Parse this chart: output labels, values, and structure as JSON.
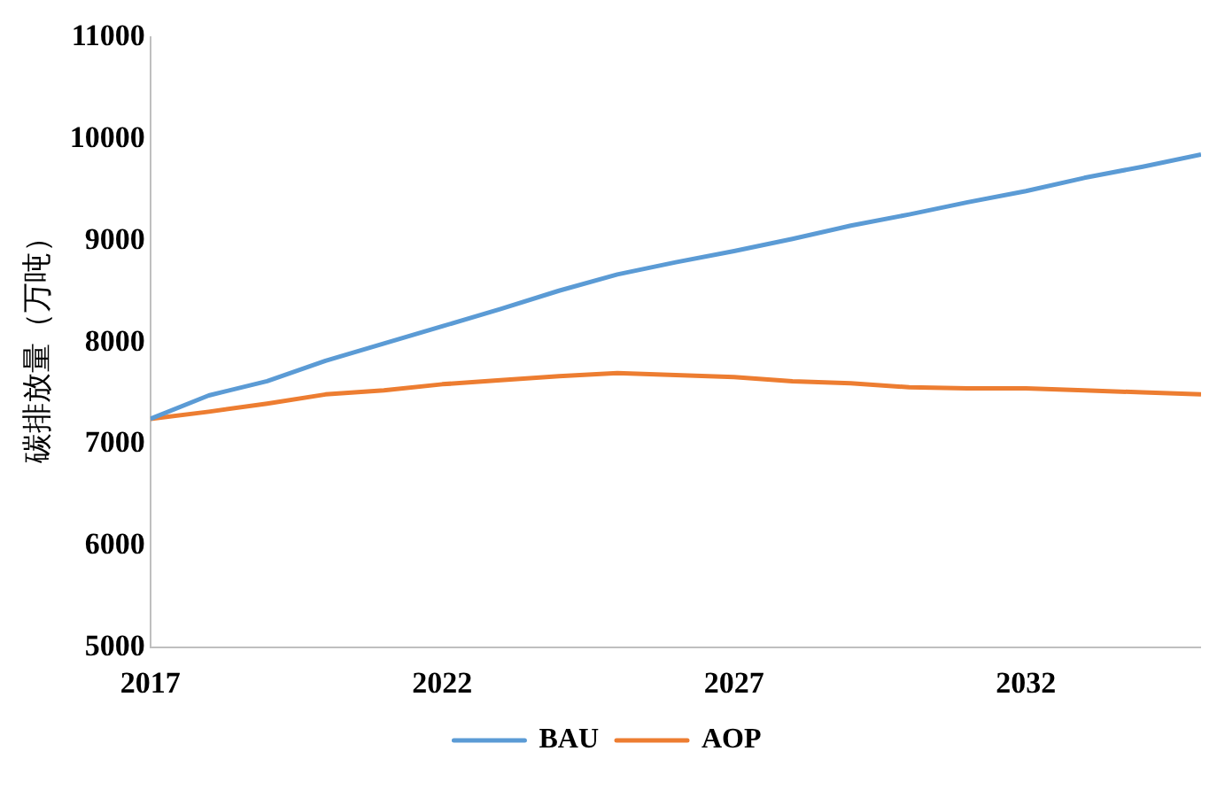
{
  "chart_data": {
    "type": "line",
    "ylabel": "碳排放量（万吨）",
    "x": [
      2017,
      2018,
      2019,
      2020,
      2021,
      2022,
      2023,
      2024,
      2025,
      2026,
      2027,
      2028,
      2029,
      2030,
      2031,
      2032,
      2033,
      2034,
      2035
    ],
    "series": [
      {
        "name": "BAU",
        "color": "#5b9bd5",
        "values": [
          7250,
          7480,
          7620,
          7820,
          7990,
          8160,
          8330,
          8510,
          8670,
          8790,
          8900,
          9020,
          9150,
          9260,
          9380,
          9490,
          9620,
          9730,
          9850
        ]
      },
      {
        "name": "AOP",
        "color": "#ed7d31",
        "values": [
          7250,
          7320,
          7400,
          7490,
          7530,
          7590,
          7630,
          7670,
          7700,
          7680,
          7660,
          7620,
          7600,
          7560,
          7550,
          7550,
          7530,
          7510,
          7490
        ]
      }
    ],
    "xlim": [
      2017,
      2035
    ],
    "xticks": [
      2017,
      2022,
      2027,
      2032
    ],
    "ylim": [
      5000,
      11000
    ],
    "yticks": [
      5000,
      6000,
      7000,
      8000,
      9000,
      10000,
      11000
    ],
    "grid": false,
    "legend": "bottom",
    "marker": "none",
    "line_style": "solid"
  }
}
